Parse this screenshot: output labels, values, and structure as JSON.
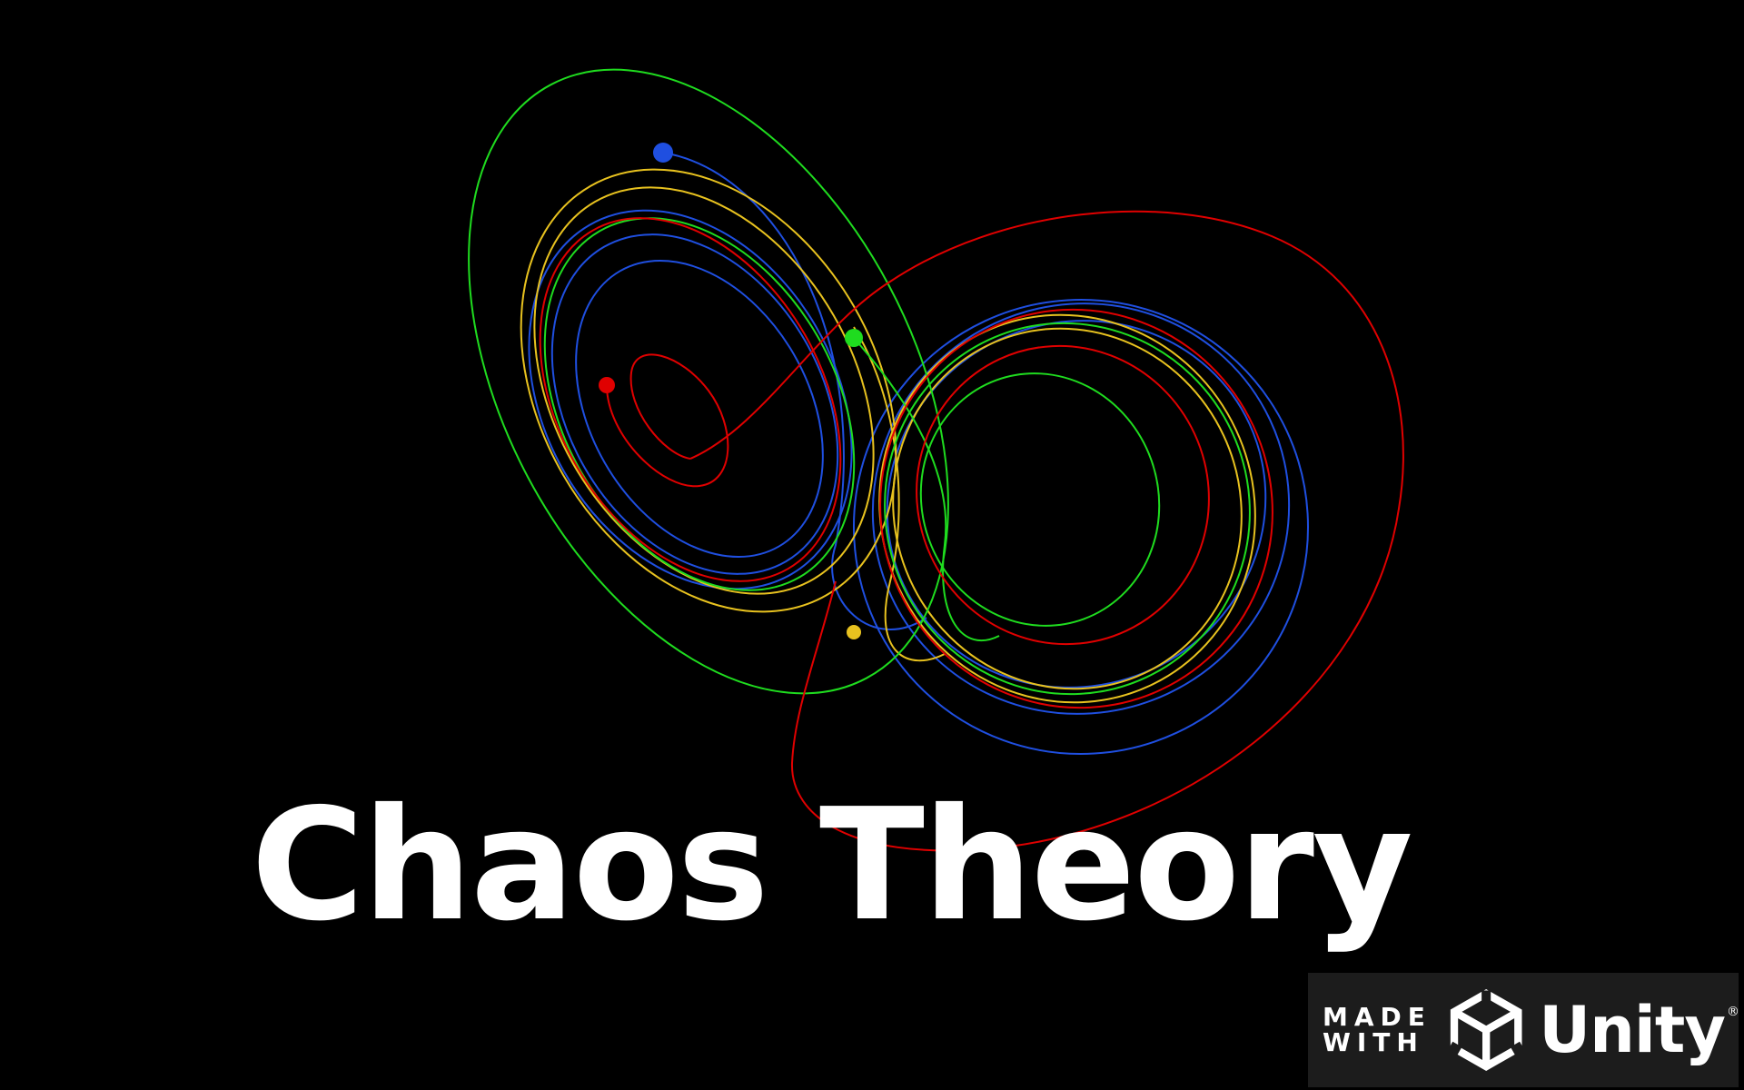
{
  "game": {
    "title": "Chaos Theory"
  },
  "attractor": {
    "trajectories": [
      {
        "color": "#e00000"
      },
      {
        "color": "#1f4fe0"
      },
      {
        "color": "#1fdc1f"
      },
      {
        "color": "#e8c21f"
      }
    ]
  },
  "splash": {
    "made_with_line1": "MADE",
    "made_with_line2": "WITH",
    "brand": "Unity",
    "registered_mark": "®",
    "logo_icon": "unity-cube-icon"
  }
}
